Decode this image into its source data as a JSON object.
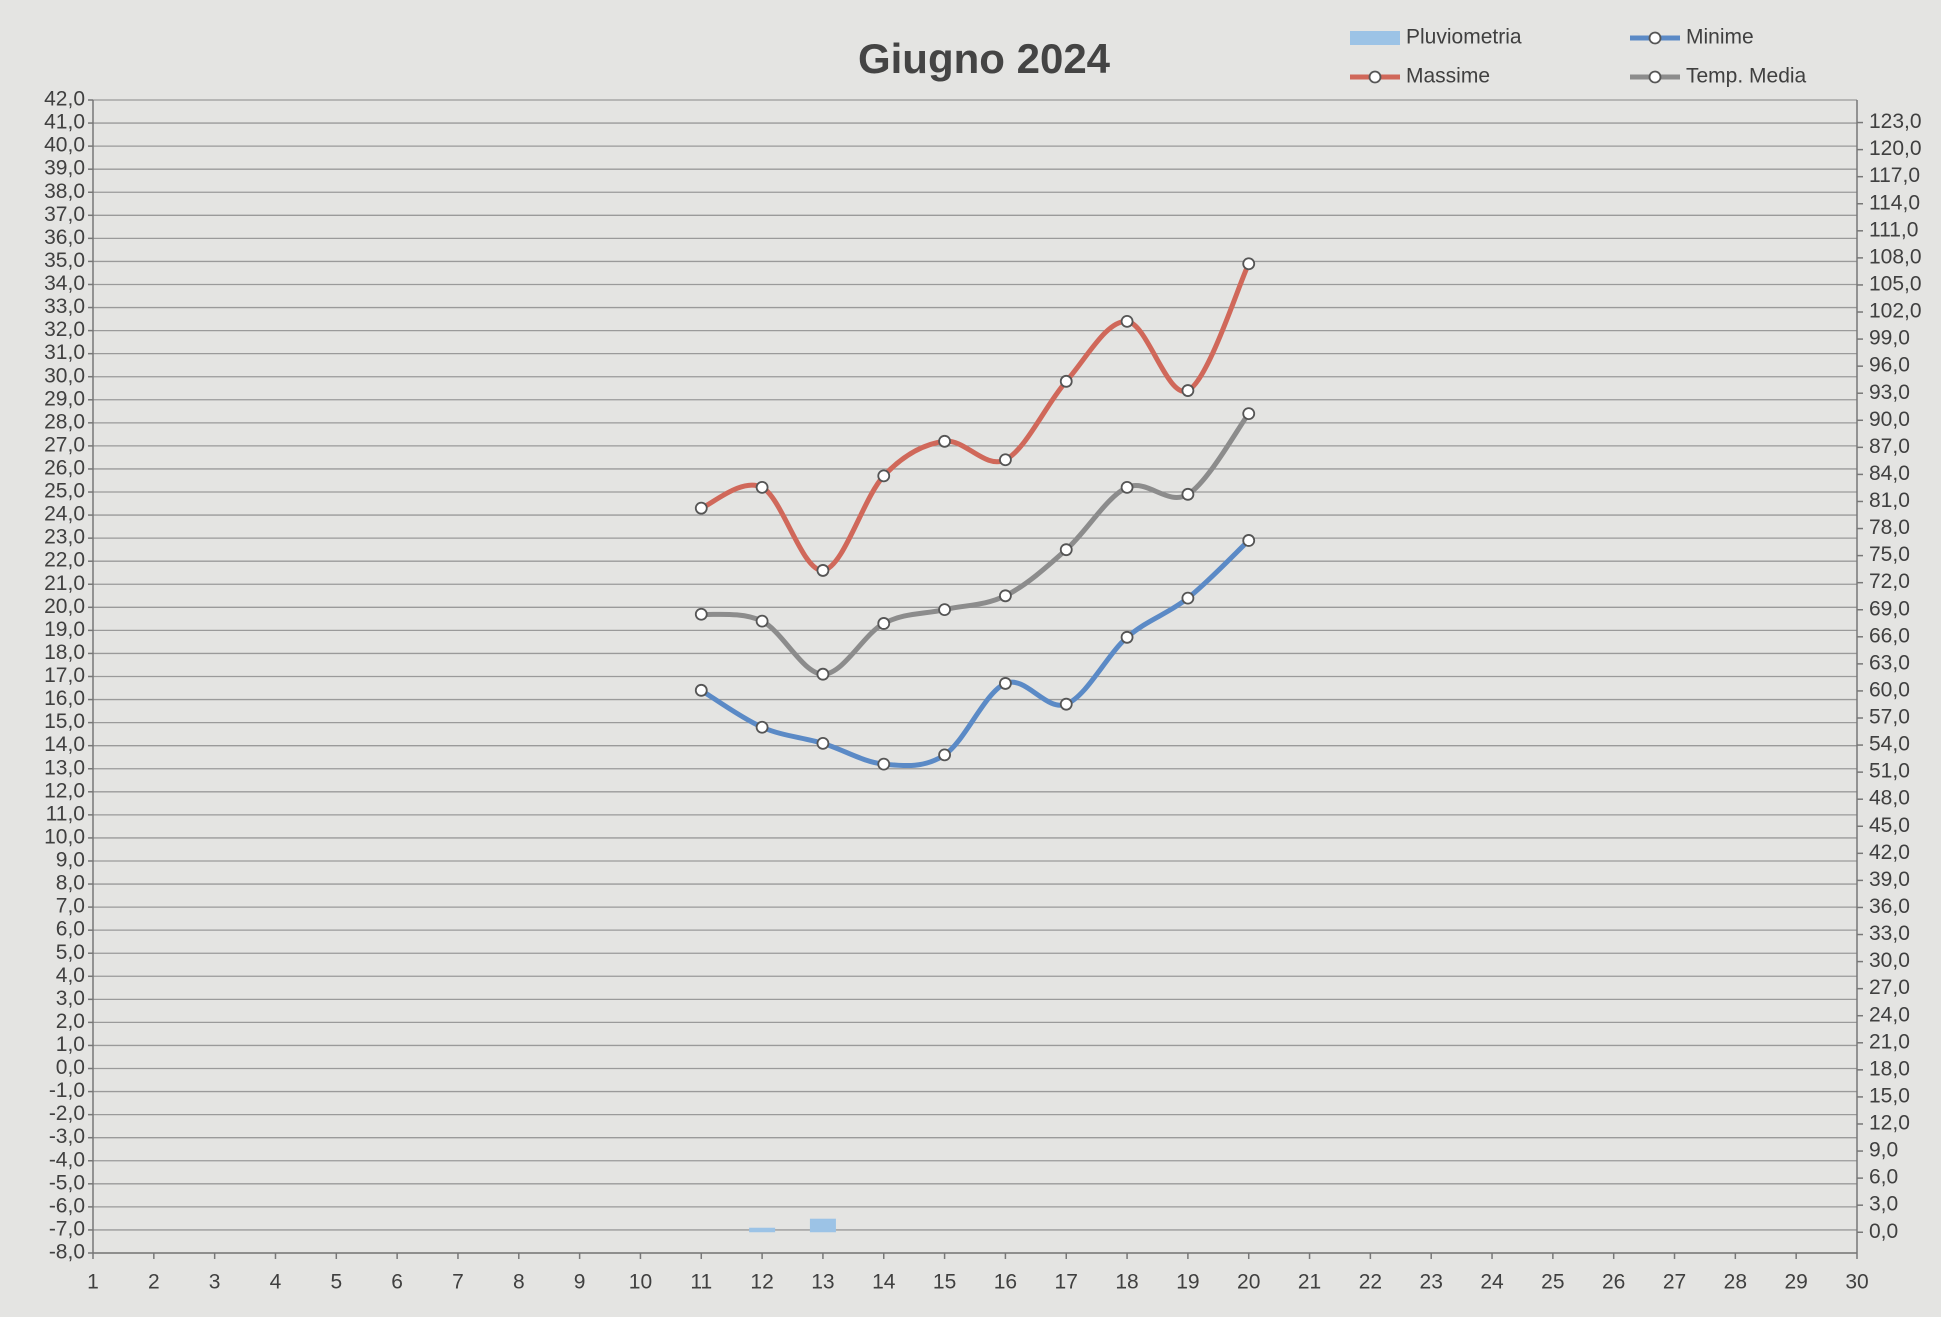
{
  "chart_data": {
    "type": "line",
    "title": "Giugno 2024",
    "smooth": true,
    "grid": true,
    "legend": "top-right",
    "categories": [
      "1",
      "2",
      "3",
      "4",
      "5",
      "6",
      "7",
      "8",
      "9",
      "10",
      "11",
      "12",
      "13",
      "14",
      "15",
      "16",
      "17",
      "18",
      "19",
      "20",
      "21",
      "22",
      "23",
      "24",
      "25",
      "26",
      "27",
      "28",
      "29",
      "30"
    ],
    "series": [
      {
        "name": "Pluviometria",
        "type": "bar",
        "axis": "y2",
        "color": "#9cc3e6",
        "values": [
          null,
          null,
          null,
          null,
          null,
          null,
          null,
          null,
          null,
          null,
          null,
          0.5,
          1.5,
          null,
          null,
          null,
          null,
          null,
          null,
          null,
          null,
          null,
          null,
          null,
          null,
          null,
          null,
          null,
          null,
          null
        ]
      },
      {
        "name": "Minime",
        "color": "#5b8ac6",
        "values": [
          null,
          null,
          null,
          null,
          null,
          null,
          null,
          null,
          null,
          null,
          16.4,
          14.8,
          14.1,
          13.2,
          13.6,
          16.7,
          15.8,
          18.7,
          20.4,
          22.9,
          null,
          null,
          null,
          null,
          null,
          null,
          null,
          null,
          null,
          null
        ]
      },
      {
        "name": "Massime",
        "color": "#d0685a",
        "values": [
          null,
          null,
          null,
          null,
          null,
          null,
          null,
          null,
          null,
          null,
          24.3,
          25.2,
          21.6,
          25.7,
          27.2,
          26.4,
          29.8,
          32.4,
          29.4,
          34.9,
          null,
          null,
          null,
          null,
          null,
          null,
          null,
          null,
          null,
          null
        ]
      },
      {
        "name": "Temp. Media",
        "color": "#8c8c8c",
        "values": [
          null,
          null,
          null,
          null,
          null,
          null,
          null,
          null,
          null,
          null,
          19.7,
          19.4,
          17.1,
          19.3,
          19.9,
          20.5,
          22.5,
          25.2,
          24.9,
          28.4,
          null,
          null,
          null,
          null,
          null,
          null,
          null,
          null,
          null,
          null
        ]
      }
    ],
    "ylim": [
      -8,
      42
    ],
    "yticks": [
      {
        "value": -8,
        "label": "-8,0"
      },
      {
        "value": -7,
        "label": "-7,0"
      },
      {
        "value": -6,
        "label": "-6,0"
      },
      {
        "value": -5,
        "label": "-5,0"
      },
      {
        "value": -4,
        "label": "-4,0"
      },
      {
        "value": -3,
        "label": "-3,0"
      },
      {
        "value": -2,
        "label": "-2,0"
      },
      {
        "value": -1,
        "label": "-1,0"
      },
      {
        "value": 0,
        "label": "0,0"
      },
      {
        "value": 1,
        "label": "1,0"
      },
      {
        "value": 2,
        "label": "2,0"
      },
      {
        "value": 3,
        "label": "3,0"
      },
      {
        "value": 4,
        "label": "4,0"
      },
      {
        "value": 5,
        "label": "5,0"
      },
      {
        "value": 6,
        "label": "6,0"
      },
      {
        "value": 7,
        "label": "7,0"
      },
      {
        "value": 8,
        "label": "8,0"
      },
      {
        "value": 9,
        "label": "9,0"
      },
      {
        "value": 10,
        "label": "10,0"
      },
      {
        "value": 11,
        "label": "11,0"
      },
      {
        "value": 12,
        "label": "12,0"
      },
      {
        "value": 13,
        "label": "13,0"
      },
      {
        "value": 14,
        "label": "14,0"
      },
      {
        "value": 15,
        "label": "15,0"
      },
      {
        "value": 16,
        "label": "16,0"
      },
      {
        "value": 17,
        "label": "17,0"
      },
      {
        "value": 18,
        "label": "18,0"
      },
      {
        "value": 19,
        "label": "19,0"
      },
      {
        "value": 20,
        "label": "20,0"
      },
      {
        "value": 21,
        "label": "21,0"
      },
      {
        "value": 22,
        "label": "22,0"
      },
      {
        "value": 23,
        "label": "23,0"
      },
      {
        "value": 24,
        "label": "24,0"
      },
      {
        "value": 25,
        "label": "25,0"
      },
      {
        "value": 26,
        "label": "26,0"
      },
      {
        "value": 27,
        "label": "27,0"
      },
      {
        "value": 28,
        "label": "28,0"
      },
      {
        "value": 29,
        "label": "29,0"
      },
      {
        "value": 30,
        "label": "30,0"
      },
      {
        "value": 31,
        "label": "31,0"
      },
      {
        "value": 32,
        "label": "32,0"
      },
      {
        "value": 33,
        "label": "33,0"
      },
      {
        "value": 34,
        "label": "34,0"
      },
      {
        "value": 35,
        "label": "35,0"
      },
      {
        "value": 36,
        "label": "36,0"
      },
      {
        "value": 37,
        "label": "37,0"
      },
      {
        "value": 38,
        "label": "38,0"
      },
      {
        "value": 39,
        "label": "39,0"
      },
      {
        "value": 40,
        "label": "40,0"
      },
      {
        "value": 41,
        "label": "41,0"
      },
      {
        "value": 42,
        "label": "42,0"
      }
    ],
    "y2lim": [
      -2.3,
      125.5
    ],
    "y2ticks": [
      {
        "value": 0,
        "label": "0,0"
      },
      {
        "value": 3,
        "label": "3,0"
      },
      {
        "value": 6,
        "label": "6,0"
      },
      {
        "value": 9,
        "label": "9,0"
      },
      {
        "value": 12,
        "label": "12,0"
      },
      {
        "value": 15,
        "label": "15,0"
      },
      {
        "value": 18,
        "label": "18,0"
      },
      {
        "value": 21,
        "label": "21,0"
      },
      {
        "value": 24,
        "label": "24,0"
      },
      {
        "value": 27,
        "label": "27,0"
      },
      {
        "value": 30,
        "label": "30,0"
      },
      {
        "value": 33,
        "label": "33,0"
      },
      {
        "value": 36,
        "label": "36,0"
      },
      {
        "value": 39,
        "label": "39,0"
      },
      {
        "value": 42,
        "label": "42,0"
      },
      {
        "value": 45,
        "label": "45,0"
      },
      {
        "value": 48,
        "label": "48,0"
      },
      {
        "value": 51,
        "label": "51,0"
      },
      {
        "value": 54,
        "label": "54,0"
      },
      {
        "value": 57,
        "label": "57,0"
      },
      {
        "value": 60,
        "label": "60,0"
      },
      {
        "value": 63,
        "label": "63,0"
      },
      {
        "value": 66,
        "label": "66,0"
      },
      {
        "value": 69,
        "label": "69,0"
      },
      {
        "value": 72,
        "label": "72,0"
      },
      {
        "value": 75,
        "label": "75,0"
      },
      {
        "value": 78,
        "label": "78,0"
      },
      {
        "value": 81,
        "label": "81,0"
      },
      {
        "value": 84,
        "label": "84,0"
      },
      {
        "value": 87,
        "label": "87,0"
      },
      {
        "value": 90,
        "label": "90,0"
      },
      {
        "value": 93,
        "label": "93,0"
      },
      {
        "value": 96,
        "label": "96,0"
      },
      {
        "value": 99,
        "label": "99,0"
      },
      {
        "value": 102,
        "label": "102,0"
      },
      {
        "value": 105,
        "label": "105,0"
      },
      {
        "value": 108,
        "label": "108,0"
      },
      {
        "value": 111,
        "label": "111,0"
      },
      {
        "value": 114,
        "label": "114,0"
      },
      {
        "value": 117,
        "label": "117,0"
      },
      {
        "value": 120,
        "label": "120,0"
      },
      {
        "value": 123,
        "label": "123,0"
      }
    ]
  }
}
